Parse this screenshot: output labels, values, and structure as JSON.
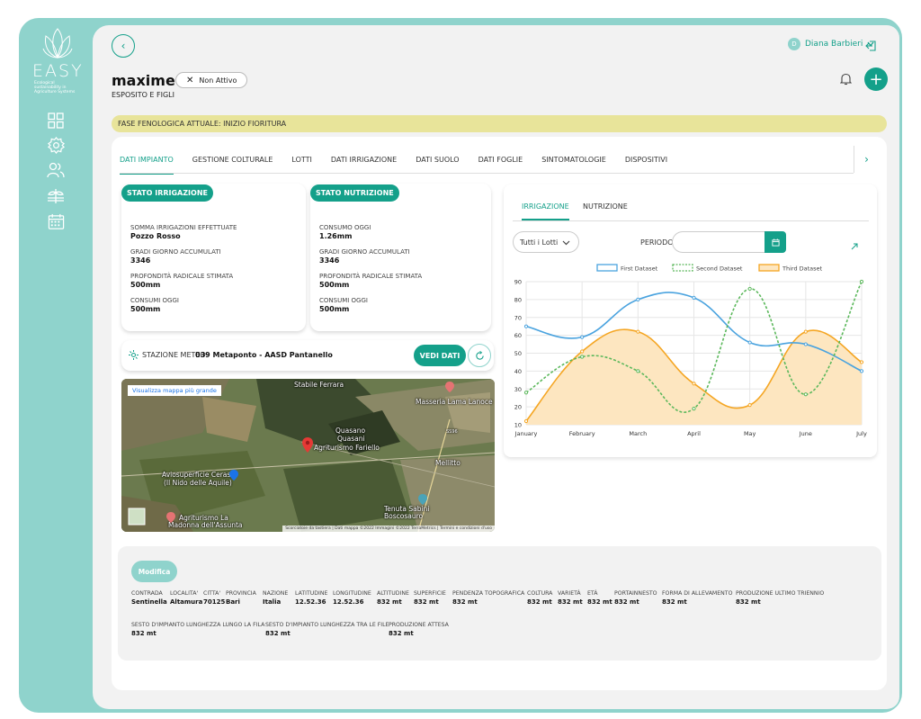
{
  "sidebar": {
    "brand": "EASY",
    "tagline": "Ecological sustainability in Agriculture Systems",
    "items": [
      {
        "icon": "dashboard-grid-icon"
      },
      {
        "icon": "gear-icon"
      },
      {
        "icon": "users-icon"
      },
      {
        "icon": "plant-icon"
      },
      {
        "icon": "calendar-icon"
      }
    ]
  },
  "header": {
    "user_initial": "D",
    "user_name": "Diana Barbieri",
    "title": "maxime",
    "subtitle": "ESPOSITO E FIGLI",
    "status": "Non Attivo"
  },
  "phase": "FASE FENOLOGICA ATTUALE: INIZIO FIORITURA",
  "tabs": [
    "DATI IMPIANTO",
    "GESTIONE COLTURALE",
    "LOTTI",
    "DATI IRRIGAZIONE",
    "DATI SUOLO",
    "DATI FOGLIE",
    "SINTOMATOLOGIE",
    "DISPOSITIVI"
  ],
  "irrigazione_panel": {
    "title": "STATO IRRIGAZIONE",
    "fields": [
      {
        "label": "SOMMA IRRIGAZIONI EFFETTUATE",
        "value": "Pozzo Rosso"
      },
      {
        "label": "GRADI GIORNO ACCUMULATI",
        "value": "3346"
      },
      {
        "label": "PROFONDITÀ RADICALE STIMATA",
        "value": "500mm"
      },
      {
        "label": "CONSUMI OGGI",
        "value": "500mm"
      }
    ]
  },
  "nutrizione_panel": {
    "title": "STATO NUTRIZIONE",
    "fields": [
      {
        "label": "CONSUMO OGGI",
        "value": "1.26mm"
      },
      {
        "label": "GRADI GIORNO ACCUMULATI",
        "value": "3346"
      },
      {
        "label": "PROFONDITÀ RADICALE STIMATA",
        "value": "500mm"
      },
      {
        "label": "CONSUMI OGGI",
        "value": "500mm"
      }
    ]
  },
  "meteo": {
    "label": "STAZIONE METEO:",
    "value": "039 Metaponto - AASD Pantanello",
    "button": "VEDI DATI"
  },
  "map": {
    "link": "Visualizza mappa più grande",
    "labels": [
      {
        "text": "Stabile Ferrara"
      },
      {
        "text": "Masseria Lama Lanoce"
      },
      {
        "text": "Quasano"
      },
      {
        "text": "Quasani"
      },
      {
        "text": "Agriturismo Fariello"
      },
      {
        "text": "Mellitto"
      },
      {
        "text": "Aviosuperficie Ceraso"
      },
      {
        "text": "(Il Nido delle Aquile)"
      },
      {
        "text": "Tenuta Sabini"
      },
      {
        "text": "Boscosauro"
      },
      {
        "text": "Agriturismo La"
      },
      {
        "text": "Madonna dell'Assunta"
      },
      {
        "text": "SS96"
      }
    ],
    "footer": "Scorciatoie da tastiera | Dati mappa ©2022 Immagini ©2022 TerraMetrics | Termini e condizioni d'uso"
  },
  "chart_panel": {
    "tabs": [
      "IRRIGAZIONE",
      "NUTRIZIONE"
    ],
    "select": "Tutti i Lotti",
    "periodo_label": "PERIODO:"
  },
  "chart_data": {
    "type": "line",
    "categories": [
      "January",
      "February",
      "March",
      "April",
      "May",
      "June",
      "July"
    ],
    "ylim": [
      10,
      90
    ],
    "yticks": [
      10,
      20,
      30,
      40,
      50,
      60,
      70,
      80,
      90
    ],
    "legend": "top",
    "grid": true,
    "series": [
      {
        "name": "First Dataset",
        "values": [
          65,
          59,
          80,
          81,
          56,
          55,
          40
        ],
        "color": "#4aa3df",
        "style": "solid",
        "fill": false
      },
      {
        "name": "Second Dataset",
        "values": [
          28,
          48,
          40,
          19,
          86,
          27,
          90
        ],
        "color": "#5cb85c",
        "style": "dashed",
        "fill": false
      },
      {
        "name": "Third Dataset",
        "values": [
          12,
          51,
          62,
          33,
          21,
          62,
          45
        ],
        "color": "#f5a623",
        "style": "solid",
        "fill": true,
        "fill_color": "#fde6c0"
      }
    ]
  },
  "bottom": {
    "button": "Modifica",
    "row1": [
      {
        "label": "CONTRADA",
        "value": "Sentinella"
      },
      {
        "label": "LOCALITA'",
        "value": "Altamura"
      },
      {
        "label": "CITTA'",
        "value": "70125"
      },
      {
        "label": "PROVINCIA",
        "value": "Bari"
      },
      {
        "label": "NAZIONE",
        "value": "Italia"
      },
      {
        "label": "LATITUDINE",
        "value": "12.52.36"
      },
      {
        "label": "LONGITUDINE",
        "value": "12.52.36"
      },
      {
        "label": "ALTITUDINE",
        "value": "832 mt"
      },
      {
        "label": "SUPERFICIE",
        "value": "832 mt"
      },
      {
        "label": "PENDENZA TOPOGRAFICA",
        "value": "832 mt"
      },
      {
        "label": "COLTURA",
        "value": "832 mt"
      },
      {
        "label": "VARIETÀ",
        "value": "832 mt"
      },
      {
        "label": "ETÀ",
        "value": "832 mt"
      },
      {
        "label": "PORTAINNESTO",
        "value": "832 mt"
      },
      {
        "label": "FORMA DI ALLEVAMENTO",
        "value": "832 mt"
      },
      {
        "label": "PRODUZIONE ULTIMO TRIENNIO",
        "value": "832 mt"
      }
    ],
    "row2": [
      {
        "label": "SESTO D'IMPIANTO LUNGHEZZA LUNGO LA FILA",
        "value": "832 mt"
      },
      {
        "label": "SESTO D'IMPIANTO LUNGHEZZA TRA LE FILE",
        "value": "832 mt"
      },
      {
        "label": "PRODUZIONE ATTESA",
        "value": "832 mt"
      }
    ]
  }
}
